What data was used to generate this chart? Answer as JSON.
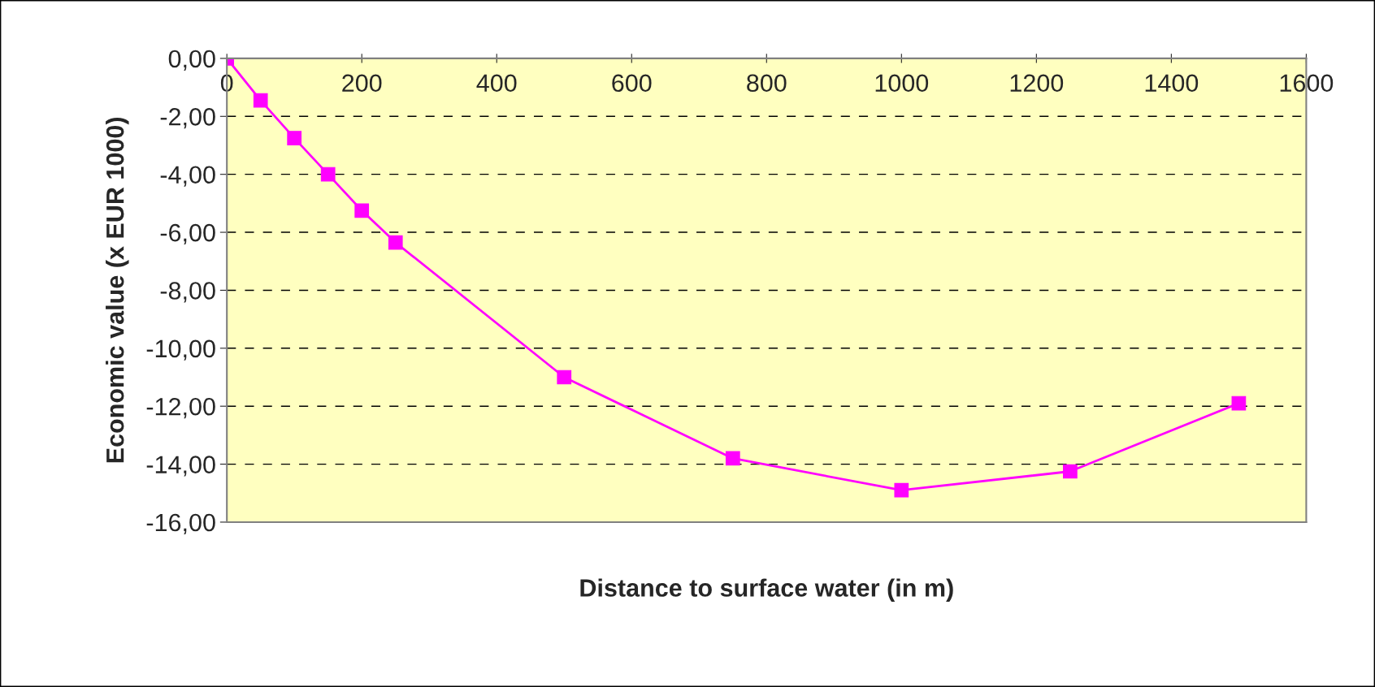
{
  "chart_data": {
    "type": "line",
    "xlabel": "Distance to surface water (in m)",
    "ylabel": "Economic value (x EUR 1000)",
    "x": [
      0,
      50,
      100,
      150,
      200,
      250,
      500,
      750,
      1000,
      1250,
      1500
    ],
    "series": [
      {
        "color": "#ff00ff",
        "values": [
          0,
          -1.45,
          -2.75,
          -4.0,
          -5.25,
          -6.35,
          -11.0,
          -13.8,
          -14.9,
          -14.25,
          -11.9
        ]
      }
    ],
    "xlim": [
      0,
      1600
    ],
    "xticks": [
      0,
      200,
      400,
      600,
      800,
      1000,
      1200,
      1400,
      1600
    ],
    "ylim": [
      -16,
      0
    ],
    "yticks": [
      {
        "value": 0,
        "label": "0,00"
      },
      {
        "value": -2,
        "label": "-2,00"
      },
      {
        "value": -4,
        "label": "-4,00"
      },
      {
        "value": -6,
        "label": "-6,00"
      },
      {
        "value": -8,
        "label": "-8,00"
      },
      {
        "value": -10,
        "label": "-10,00"
      },
      {
        "value": -12,
        "label": "-12,00"
      },
      {
        "value": -14,
        "label": "-14,00"
      },
      {
        "value": -16,
        "label": "-16,00"
      }
    ],
    "grid": "y",
    "marker": "square",
    "line_style": "solid"
  }
}
